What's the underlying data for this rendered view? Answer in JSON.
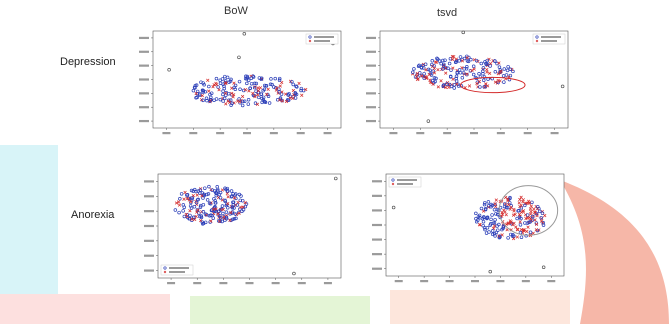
{
  "column_titles": {
    "left": "BoW",
    "right": "tsvd"
  },
  "row_labels": {
    "top": "Depression",
    "bottom": "Anorexia"
  },
  "colors": {
    "series_a": "#2c3fb8",
    "series_b": "#d42a2a",
    "axis": "#555555",
    "background_shapes": [
      "#d8f4f8",
      "#fde0df",
      "#e4f5d6",
      "#fde6dc",
      "#f6b7a8"
    ]
  },
  "chart_data": [
    {
      "type": "scatter",
      "row": "Depression",
      "column": "BoW",
      "series": [
        {
          "marker": "circle",
          "color": "#2c3fb8"
        },
        {
          "marker": "x",
          "color": "#d42a2a"
        }
      ],
      "xlim": [
        -350,
        350
      ],
      "ylim": [
        -250,
        450
      ],
      "xticks": [
        -300,
        -200,
        -100,
        0,
        100,
        200,
        300
      ],
      "yticks": [
        -200,
        -100,
        0,
        100,
        200,
        300,
        400
      ],
      "tick_labels_readable": false,
      "legend_position": "top-right",
      "cluster": {
        "cx": 0,
        "cy": 20,
        "rx": 220,
        "ry": 110
      },
      "outliers": [
        [
          -10,
          430
        ],
        [
          -30,
          260
        ],
        [
          -290,
          170
        ],
        [
          320,
          360
        ]
      ],
      "highlight_ellipse": null
    },
    {
      "type": "scatter",
      "row": "Depression",
      "column": "tsvd",
      "series": [
        {
          "marker": "circle",
          "color": "#2c3fb8"
        },
        {
          "marker": "x",
          "color": "#d42a2a"
        }
      ],
      "xlim": [
        -350,
        350
      ],
      "ylim": [
        -250,
        450
      ],
      "xticks": [
        -300,
        -200,
        -100,
        0,
        100,
        200,
        300
      ],
      "yticks": [
        -200,
        -100,
        0,
        100,
        200,
        300,
        400
      ],
      "tick_labels_readable": false,
      "legend_position": "top-right",
      "cluster": {
        "cx": -40,
        "cy": 150,
        "rx": 190,
        "ry": 120
      },
      "outliers": [
        [
          -40,
          440
        ],
        [
          -170,
          -200
        ],
        [
          330,
          50
        ]
      ],
      "highlight_ellipse": {
        "cx": 70,
        "cy": 60,
        "rx": 120,
        "ry": 55,
        "color": "#d42a2a"
      }
    },
    {
      "type": "scatter",
      "row": "Anorexia",
      "column": "BoW",
      "series": [
        {
          "marker": "circle",
          "color": "#2c3fb8"
        },
        {
          "marker": "x",
          "color": "#d42a2a"
        }
      ],
      "xlim": [
        -350,
        350
      ],
      "ylim": [
        -250,
        450
      ],
      "xticks": [
        -300,
        -200,
        -100,
        0,
        100,
        200,
        300
      ],
      "yticks": [
        -200,
        -100,
        0,
        100,
        200,
        300,
        400
      ],
      "tick_labels_readable": false,
      "legend_position": "bottom-left",
      "cluster": {
        "cx": -150,
        "cy": 240,
        "rx": 140,
        "ry": 130
      },
      "outliers": [
        [
          330,
          420
        ],
        [
          170,
          -220
        ]
      ],
      "highlight_ellipse": null
    },
    {
      "type": "scatter",
      "row": "Anorexia",
      "column": "tsvd",
      "series": [
        {
          "marker": "circle",
          "color": "#2c3fb8"
        },
        {
          "marker": "x",
          "color": "#d42a2a"
        }
      ],
      "xlim": [
        -350,
        350
      ],
      "ylim": [
        -250,
        450
      ],
      "xticks": [
        -300,
        -200,
        -100,
        0,
        100,
        200,
        300
      ],
      "yticks": [
        -200,
        -100,
        0,
        100,
        200,
        300,
        400
      ],
      "tick_labels_readable": false,
      "legend_position": "top-left",
      "cluster": {
        "cx": 140,
        "cy": 150,
        "rx": 140,
        "ry": 150
      },
      "outliers": [
        [
          -320,
          220
        ],
        [
          60,
          -220
        ],
        [
          270,
          -190
        ]
      ],
      "highlight_ellipse": {
        "cx": 210,
        "cy": 200,
        "rx": 115,
        "ry": 170,
        "color": "#999999"
      }
    }
  ]
}
